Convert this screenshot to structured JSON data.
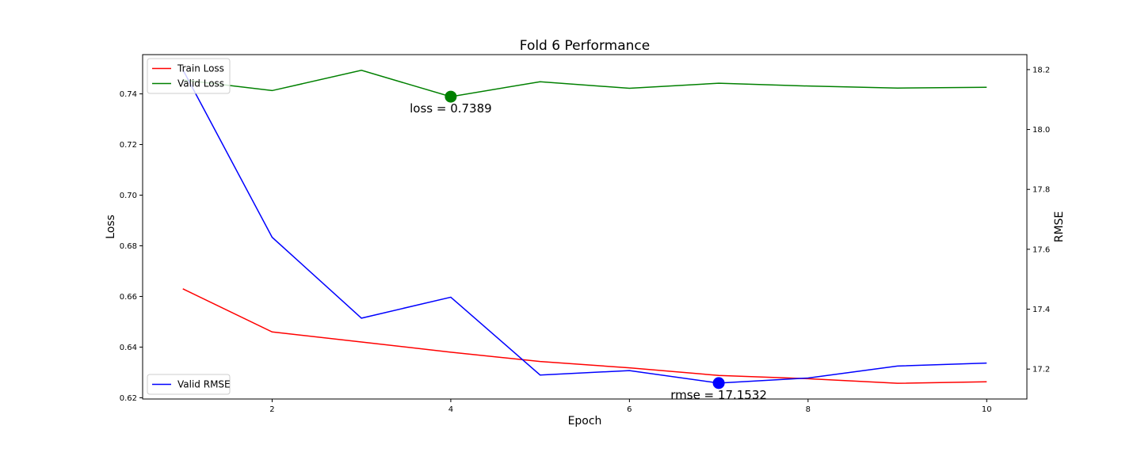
{
  "chart_data": {
    "type": "line",
    "title": "Fold 6 Performance",
    "xlabel": "Epoch",
    "ylabel": "Loss",
    "y2label": "RMSE",
    "xlim": [
      0.55,
      10.45
    ],
    "ylim": [
      0.6195,
      0.7555
    ],
    "y2lim": [
      17.1,
      18.25
    ],
    "xticks": [
      2,
      4,
      6,
      8,
      10
    ],
    "yticks": [
      0.62,
      0.64,
      0.66,
      0.68,
      0.7,
      0.72,
      0.74
    ],
    "y2ticks": [
      17.2,
      17.4,
      17.6,
      17.8,
      18.0,
      18.2
    ],
    "x": [
      1,
      2,
      3,
      4,
      5,
      6,
      7,
      8,
      9,
      10
    ],
    "series": [
      {
        "name": "Train Loss",
        "axis": "left",
        "color": "#ff0000",
        "values": [
          0.663,
          0.646,
          0.642,
          0.638,
          0.6343,
          0.6318,
          0.6288,
          0.6275,
          0.6257,
          0.6263
        ]
      },
      {
        "name": "Valid Loss",
        "axis": "left",
        "color": "#008000",
        "values": [
          0.7455,
          0.7413,
          0.7493,
          0.7389,
          0.7448,
          0.7422,
          0.7442,
          0.7431,
          0.7423,
          0.7426
        ]
      },
      {
        "name": "Valid RMSE",
        "axis": "right",
        "color": "#0000ff",
        "values": [
          18.2,
          17.64,
          17.37,
          17.44,
          17.18,
          17.195,
          17.1532,
          17.17,
          17.21,
          17.22
        ]
      }
    ],
    "legends": [
      {
        "position": "upper-left",
        "entries": [
          "Train Loss",
          "Valid Loss"
        ]
      },
      {
        "position": "lower-left",
        "entries": [
          "Valid RMSE"
        ]
      }
    ],
    "annotations": [
      {
        "text": "loss = 0.7389",
        "x": 4,
        "y": 0.7389,
        "axis": "left",
        "color": "#008000"
      },
      {
        "text": "rmse = 17.1532",
        "x": 7,
        "y": 17.1532,
        "axis": "right",
        "color": "#0000ff"
      }
    ],
    "grid": false
  }
}
